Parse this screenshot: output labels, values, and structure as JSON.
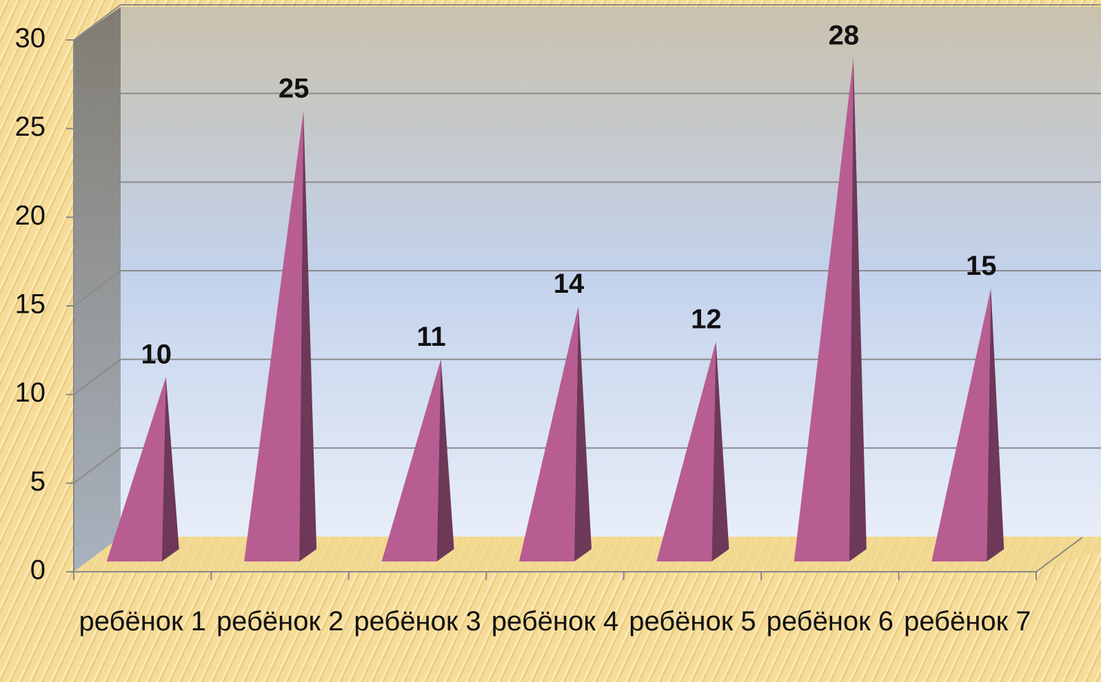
{
  "chart_data": {
    "type": "pyramid",
    "categories": [
      "ребёнок 1",
      "ребёнок 2",
      "ребёнок 3",
      "ребёнок 4",
      "ребёнок 5",
      "ребёнок 6",
      "ребёнок 7"
    ],
    "values": [
      10,
      25,
      11,
      14,
      12,
      28,
      15
    ],
    "color": "#b85d92",
    "ylim": [
      0,
      30
    ],
    "yticks": [
      0,
      5,
      10,
      15,
      20,
      25,
      30
    ],
    "grid": true
  }
}
